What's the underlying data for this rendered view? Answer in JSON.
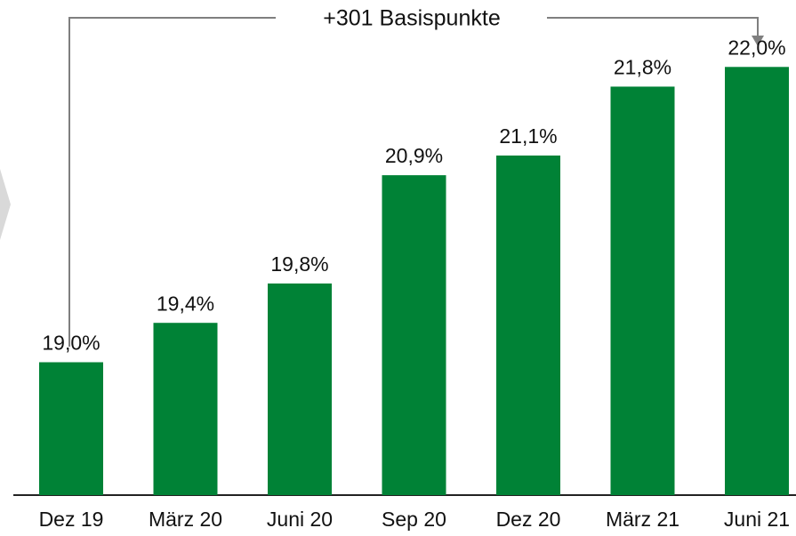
{
  "chart_data": {
    "type": "bar",
    "annotation": "+301 Basispunkte",
    "categories": [
      "Dez 19",
      "März 20",
      "Juni 20",
      "Sep 20",
      "Dez 20",
      "März 21",
      "Juni 21"
    ],
    "values": [
      19.0,
      19.4,
      19.8,
      20.9,
      21.1,
      21.8,
      22.0
    ],
    "value_labels": [
      "19,0%",
      "19,4%",
      "19,8%",
      "20,9%",
      "21,1%",
      "21,8%",
      "22,0%"
    ],
    "color": "#008236",
    "ylim": [
      17.65,
      22.68
    ]
  }
}
